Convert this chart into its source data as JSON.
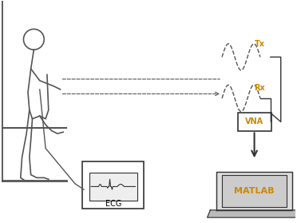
{
  "title": "",
  "fig_width": 3.72,
  "fig_height": 2.79,
  "dpi": 100,
  "bg_color": "#ffffff",
  "labels": {
    "Tx": "Tx",
    "Rx": "Rx",
    "VNA": "VNA",
    "MATLAB": "MATLAB",
    "ECG": "ECG"
  },
  "label_colors": {
    "Tx": "#cc8800",
    "Rx": "#cc8800",
    "VNA": "#cc8800",
    "MATLAB": "#cc8800",
    "ECG": "#000000"
  },
  "person_color": "#555555",
  "line_color": "#555555",
  "box_color": "#333333",
  "arrow_color": "#333333"
}
